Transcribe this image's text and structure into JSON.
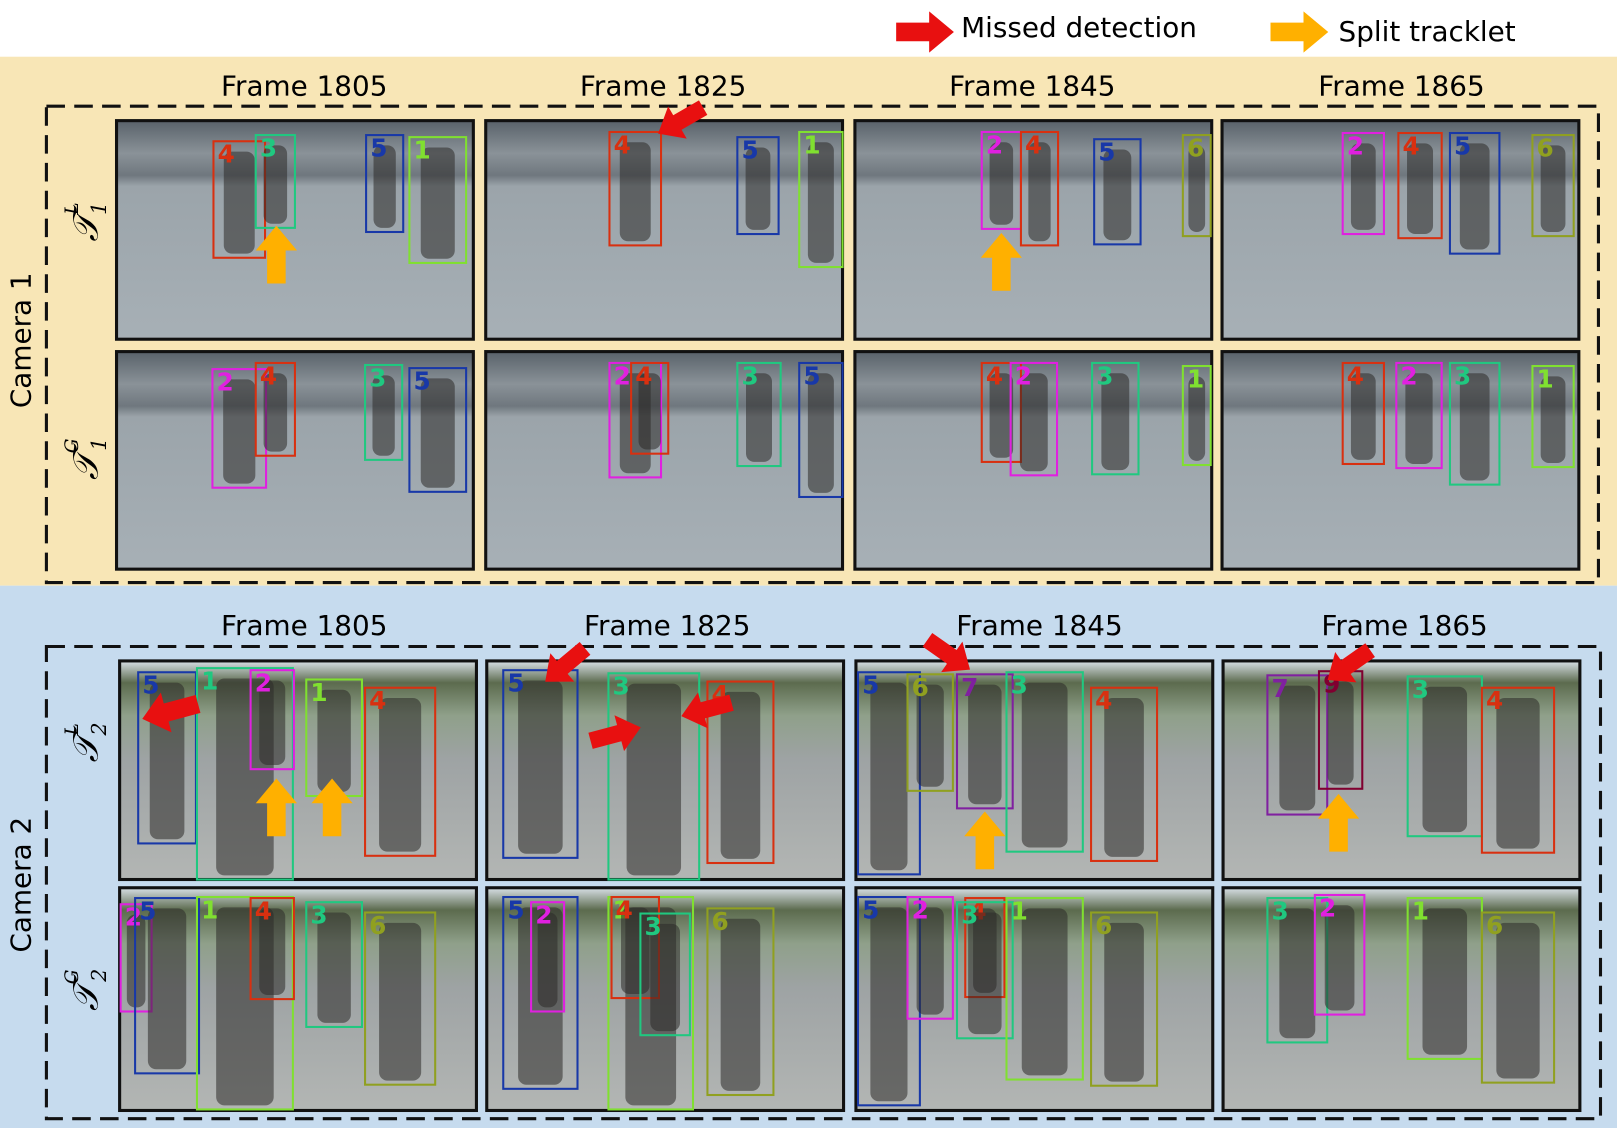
{
  "legend": [
    {
      "label": "Missed detection",
      "color": "#e81010"
    },
    {
      "label": "Split tracklet",
      "color": "#ffb000"
    }
  ],
  "cameras": [
    {
      "label": "Camera 1",
      "background": "#f8e6b6",
      "frames": [
        "Frame 1805",
        "Frame 1825",
        "Frame 1845",
        "Frame 1865"
      ],
      "rows": [
        {
          "label": {
            "symbol": "𝒯",
            "sup": "L",
            "sub": "1"
          },
          "panels": [
            [
              {
                "id": "4",
                "color": "#d83010"
              },
              {
                "id": "3",
                "color": "#20c880"
              },
              {
                "id": "5",
                "color": "#1838a8"
              },
              {
                "id": "1",
                "color": "#80e030"
              }
            ],
            [
              {
                "id": "4",
                "color": "#d83010"
              },
              {
                "id": "5",
                "color": "#1838a8"
              },
              {
                "id": "1",
                "color": "#80e030"
              }
            ],
            [
              {
                "id": "2",
                "color": "#e020e0"
              },
              {
                "id": "4",
                "color": "#d83010"
              },
              {
                "id": "5",
                "color": "#1838a8"
              },
              {
                "id": "6",
                "color": "#90a020"
              }
            ],
            [
              {
                "id": "2",
                "color": "#e020e0"
              },
              {
                "id": "4",
                "color": "#d83010"
              },
              {
                "id": "5",
                "color": "#1838a8"
              },
              {
                "id": "6",
                "color": "#90a020"
              }
            ]
          ]
        },
        {
          "label": {
            "symbol": "𝒯",
            "sup": "G",
            "sub": "1"
          },
          "panels": [
            [
              {
                "id": "2",
                "color": "#e020e0"
              },
              {
                "id": "4",
                "color": "#d83010"
              },
              {
                "id": "3",
                "color": "#20c880"
              },
              {
                "id": "5",
                "color": "#1838a8"
              }
            ],
            [
              {
                "id": "2",
                "color": "#e020e0"
              },
              {
                "id": "4",
                "color": "#d83010"
              },
              {
                "id": "3",
                "color": "#20c880"
              },
              {
                "id": "5",
                "color": "#1838a8"
              }
            ],
            [
              {
                "id": "4",
                "color": "#d83010"
              },
              {
                "id": "2",
                "color": "#e020e0"
              },
              {
                "id": "3",
                "color": "#20c880"
              },
              {
                "id": "1",
                "color": "#80e030"
              }
            ],
            [
              {
                "id": "4",
                "color": "#d83010"
              },
              {
                "id": "2",
                "color": "#e020e0"
              },
              {
                "id": "3",
                "color": "#20c880"
              },
              {
                "id": "1",
                "color": "#80e030"
              }
            ]
          ]
        }
      ]
    },
    {
      "label": "Camera 2",
      "background": "#c6dbee",
      "frames": [
        "Frame 1805",
        "Frame 1825",
        "Frame 1845",
        "Frame 1865"
      ],
      "rows": [
        {
          "label": {
            "symbol": "𝒯",
            "sup": "L",
            "sub": "2"
          },
          "panels": [
            [
              {
                "id": "5",
                "color": "#1838a8"
              },
              {
                "id": "1",
                "color": "#20c880"
              },
              {
                "id": "2",
                "color": "#e020e0"
              },
              {
                "id": "1",
                "color": "#80e030"
              },
              {
                "id": "4",
                "color": "#d83010"
              }
            ],
            [
              {
                "id": "5",
                "color": "#1838a8"
              },
              {
                "id": "3",
                "color": "#20c880"
              },
              {
                "id": "4",
                "color": "#d83010"
              }
            ],
            [
              {
                "id": "5",
                "color": "#1838a8"
              },
              {
                "id": "6",
                "color": "#90a020"
              },
              {
                "id": "7",
                "color": "#8020a0"
              },
              {
                "id": "3",
                "color": "#20c880"
              },
              {
                "id": "4",
                "color": "#d83010"
              }
            ],
            [
              {
                "id": "7",
                "color": "#8020a0"
              },
              {
                "id": "9",
                "color": "#800030"
              },
              {
                "id": "3",
                "color": "#20c880"
              },
              {
                "id": "4",
                "color": "#d83010"
              }
            ]
          ]
        },
        {
          "label": {
            "symbol": "𝒯",
            "sup": "G",
            "sub": "2"
          },
          "panels": [
            [
              {
                "id": "2",
                "color": "#e020e0"
              },
              {
                "id": "5",
                "color": "#1838a8"
              },
              {
                "id": "1",
                "color": "#80e030"
              },
              {
                "id": "4",
                "color": "#d83010"
              },
              {
                "id": "3",
                "color": "#20c880"
              },
              {
                "id": "6",
                "color": "#90a020"
              }
            ],
            [
              {
                "id": "5",
                "color": "#1838a8"
              },
              {
                "id": "2",
                "color": "#e020e0"
              },
              {
                "id": "1",
                "color": "#80e030"
              },
              {
                "id": "4",
                "color": "#d83010"
              },
              {
                "id": "3",
                "color": "#20c880"
              },
              {
                "id": "6",
                "color": "#90a020"
              }
            ],
            [
              {
                "id": "5",
                "color": "#1838a8"
              },
              {
                "id": "2",
                "color": "#e020e0"
              },
              {
                "id": "4",
                "color": "#d83010"
              },
              {
                "id": "3",
                "color": "#20c880"
              },
              {
                "id": "1",
                "color": "#80e030"
              },
              {
                "id": "6",
                "color": "#90a020"
              }
            ],
            [
              {
                "id": "3",
                "color": "#20c880"
              },
              {
                "id": "2",
                "color": "#e020e0"
              },
              {
                "id": "1",
                "color": "#80e030"
              },
              {
                "id": "6",
                "color": "#90a020"
              }
            ]
          ]
        }
      ]
    }
  ]
}
